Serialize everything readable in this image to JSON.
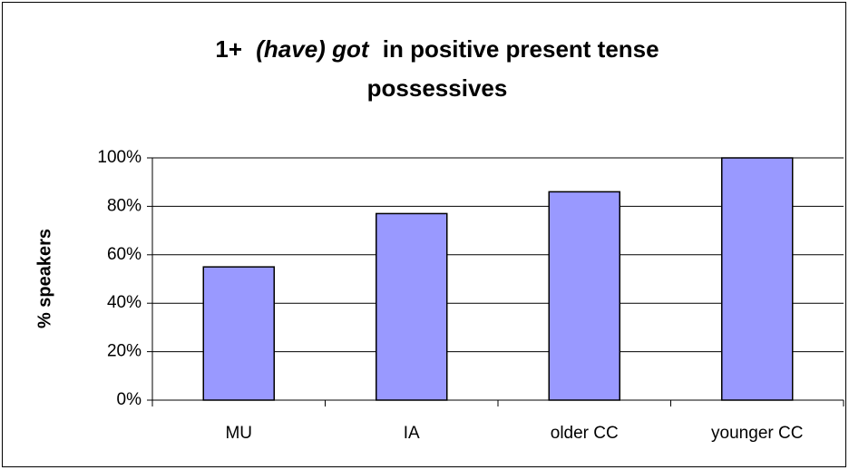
{
  "chart_data": {
    "type": "bar",
    "title_parts": [
      "1+",
      "(have) got",
      "in positive present tense",
      "possessives"
    ],
    "y_label": "% speakers",
    "categories": [
      "MU",
      "IA",
      "older CC",
      "younger CC"
    ],
    "values": [
      55,
      77,
      86,
      100
    ],
    "color": "#9999ff",
    "ylim": [
      0,
      100
    ],
    "yticks": [
      {
        "value": 0,
        "label": "0%"
      },
      {
        "value": 20,
        "label": "20%"
      },
      {
        "value": 40,
        "label": "40%"
      },
      {
        "value": 60,
        "label": "60%"
      },
      {
        "value": 80,
        "label": "80%"
      },
      {
        "value": 100,
        "label": "100%"
      }
    ],
    "grid": true
  }
}
